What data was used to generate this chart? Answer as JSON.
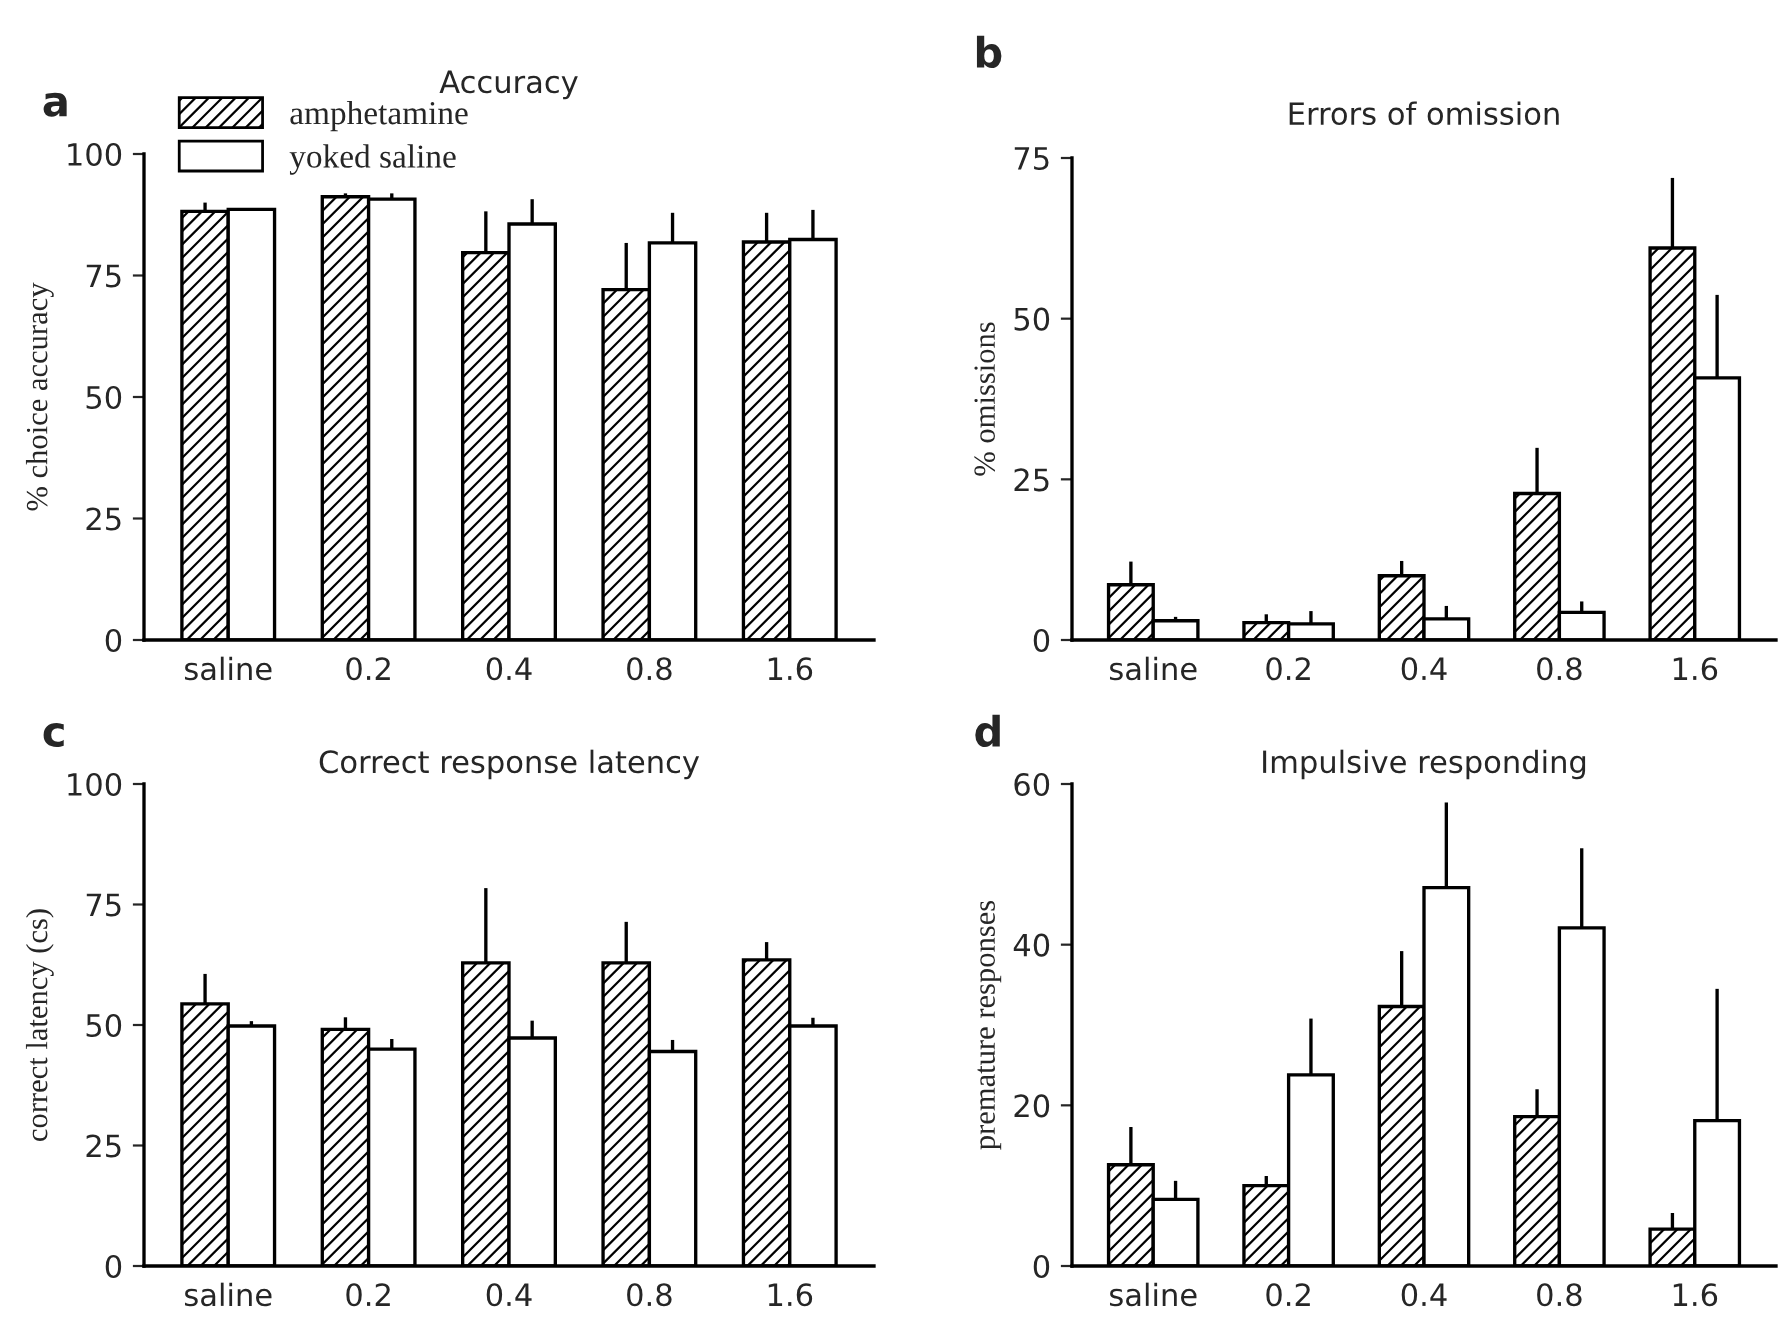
{
  "chart_data": [
    {
      "type": "bar",
      "title": "Accuracy",
      "ylabel": "% choice accuracy",
      "annotations": [
        "a"
      ],
      "categories": [
        "saline",
        "0.2",
        "0.4",
        "0.8",
        "1.6"
      ],
      "ylim": [
        0,
        100
      ],
      "yticks": [
        0,
        25,
        50,
        75,
        100
      ],
      "legend": "top left",
      "series": [
        {
          "name": "amphetamine",
          "color": "#000000",
          "values": [
            88.2,
            91.2,
            79.7,
            72.1,
            81.9
          ],
          "errors": [
            [
              88.2,
              90
            ],
            [
              91.2,
              91.9
            ],
            [
              79.7,
              88.2
            ],
            [
              72.1,
              81.7
            ],
            [
              81.9,
              87.9
            ]
          ]
        },
        {
          "name": "yoked saline",
          "color": "#000000",
          "values": [
            88.6,
            90.7,
            85.6,
            81.7,
            82.4
          ],
          "errors": [
            null,
            [
              90.7,
              91.9
            ],
            [
              85.6,
              90.7
            ],
            [
              81.7,
              87.9
            ],
            [
              82.4,
              88.5
            ]
          ]
        }
      ]
    },
    {
      "type": "bar",
      "title": "Errors of omission",
      "ylabel": "% omissions",
      "annotations": [
        "b"
      ],
      "categories": [
        "saline",
        "0.2",
        "0.4",
        "0.8",
        "1.6"
      ],
      "ylim": [
        0,
        75
      ],
      "yticks": [
        0,
        25,
        50,
        75
      ],
      "series": [
        {
          "color": "#000000",
          "values": [
            8.6,
            2.7,
            10,
            22.8,
            61
          ],
          "errors": [
            [
              8.6,
              12.2
            ],
            [
              2.7,
              4
            ],
            [
              10,
              12.3
            ],
            [
              22.8,
              29.9
            ],
            [
              61,
              71.9
            ]
          ]
        },
        {
          "color": "#000000",
          "values": [
            3,
            2.5,
            3.3,
            4.3,
            40.8
          ],
          "errors": [
            [
              3,
              3.6
            ],
            [
              2.5,
              4.5
            ],
            [
              3.3,
              5.3
            ],
            [
              4.3,
              6
            ],
            [
              40.8,
              53.7
            ]
          ]
        }
      ]
    },
    {
      "type": "bar",
      "title": "Correct response latency",
      "ylabel": "correct latency (cs)",
      "annotations": [
        "c"
      ],
      "categories": [
        "saline",
        "0.2",
        "0.4",
        "0.8",
        "1.6"
      ],
      "ylim": [
        0,
        100
      ],
      "yticks": [
        0,
        25,
        50,
        75,
        100
      ],
      "series": [
        {
          "color": "#000000",
          "values": [
            54.4,
            49.1,
            62.9,
            62.9,
            63.5
          ],
          "errors": [
            [
              54.4,
              60.6
            ],
            [
              49.1,
              51.6
            ],
            [
              62.9,
              78.4
            ],
            [
              62.9,
              71.4
            ],
            [
              63.5,
              67.2
            ]
          ]
        },
        {
          "color": "#000000",
          "values": [
            49.8,
            45,
            47.3,
            44.5,
            49.8
          ],
          "errors": [
            [
              49.8,
              50.8
            ],
            [
              45,
              47.1
            ],
            [
              47.3,
              50.9
            ],
            [
              44.5,
              46.9
            ],
            [
              49.8,
              51.5
            ]
          ]
        }
      ]
    },
    {
      "type": "bar",
      "title": "Impulsive responding",
      "ylabel": "premature responses",
      "annotations": [
        "d"
      ],
      "categories": [
        "saline",
        "0.2",
        "0.4",
        "0.8",
        "1.6"
      ],
      "ylim": [
        0,
        60
      ],
      "yticks": [
        0,
        20,
        40,
        60
      ],
      "series": [
        {
          "color": "#000000",
          "values": [
            12.6,
            10,
            32.3,
            18.6,
            4.6
          ],
          "errors": [
            [
              12.6,
              17.3
            ],
            [
              10,
              11.2
            ],
            [
              32.3,
              39.2
            ],
            [
              18.6,
              22
            ],
            [
              4.6,
              6.6
            ]
          ]
        },
        {
          "color": "#000000",
          "values": [
            8.3,
            23.8,
            47.1,
            42.1,
            18.1
          ],
          "errors": [
            [
              8.3,
              10.6
            ],
            [
              23.8,
              30.8
            ],
            [
              47.1,
              57.7
            ],
            [
              42.1,
              52
            ],
            [
              18.1,
              34.5
            ]
          ]
        }
      ]
    }
  ]
}
